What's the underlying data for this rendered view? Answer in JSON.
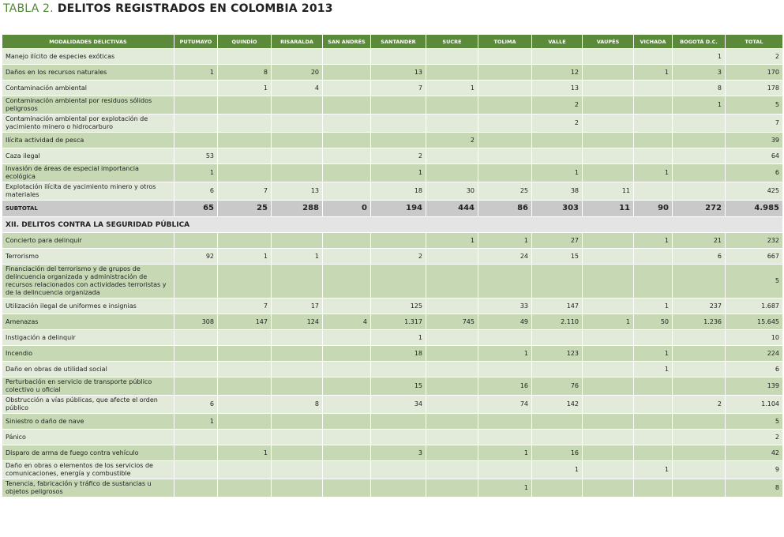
{
  "header": {
    "label": "TABLA 2.",
    "title": "DELITOS REGISTRADOS EN COLOMBIA 2013"
  },
  "table": {
    "columns": [
      "MODALIDADES DELICTIVAS",
      "PUTUMAYO",
      "QUINDÍO",
      "RISARALDA",
      "SAN ANDRÉS",
      "SANTANDER",
      "SUCRE",
      "TOLIMA",
      "VALLE",
      "VAUPÉS",
      "VICHADA",
      "BOGOTÁ D.C.",
      "TOTAL"
    ],
    "section_1": {
      "rows": [
        {
          "label": "Manejo ilícito de especies exóticas",
          "values": [
            null,
            null,
            null,
            null,
            null,
            null,
            null,
            null,
            null,
            null,
            "1",
            "2"
          ]
        },
        {
          "label": "Daños en los recursos naturales",
          "values": [
            "1",
            "8",
            "20",
            null,
            "13",
            null,
            null,
            "12",
            null,
            "1",
            "3",
            "170"
          ]
        },
        {
          "label": "Contaminación ambiental",
          "values": [
            null,
            "1",
            "4",
            null,
            "7",
            "1",
            null,
            "13",
            null,
            null,
            "8",
            "178"
          ]
        },
        {
          "label": "Contaminación ambiental por residuos sólidos peligrosos",
          "values": [
            null,
            null,
            null,
            null,
            null,
            null,
            null,
            "2",
            null,
            null,
            "1",
            "5"
          ]
        },
        {
          "label": "Contaminación ambiental por explotación de yacimiento minero o hidrocarburo",
          "values": [
            null,
            null,
            null,
            null,
            null,
            null,
            null,
            "2",
            null,
            null,
            null,
            "7"
          ]
        },
        {
          "label": "Ilícita actividad de pesca",
          "values": [
            null,
            null,
            null,
            null,
            null,
            "2",
            null,
            null,
            null,
            null,
            null,
            "39"
          ]
        },
        {
          "label": "Caza ilegal",
          "values": [
            "53",
            null,
            null,
            null,
            "2",
            null,
            null,
            null,
            null,
            null,
            null,
            "64"
          ]
        },
        {
          "label": "Invasión de áreas de especial importancia ecológica",
          "values": [
            "1",
            null,
            null,
            null,
            "1",
            null,
            null,
            "1",
            null,
            "1",
            null,
            "6"
          ]
        },
        {
          "label": "Explotación ilícita de yacimiento minero y otros materiales",
          "values": [
            "6",
            "7",
            "13",
            null,
            "18",
            "30",
            "25",
            "38",
            "11",
            null,
            null,
            "425"
          ]
        }
      ],
      "subtotal": {
        "label": "SUBTOTAL",
        "values": [
          "65",
          "25",
          "288",
          "0",
          "194",
          "444",
          "86",
          "303",
          "11",
          "90",
          "272",
          "4.985"
        ]
      }
    },
    "section_2": {
      "heading": "XII. DELITOS CONTRA LA SEGURIDAD PÚBLICA",
      "rows": [
        {
          "label": "Concierto para delinquir",
          "values": [
            null,
            null,
            null,
            null,
            null,
            "1",
            "1",
            "27",
            null,
            "1",
            "21",
            "232"
          ]
        },
        {
          "label": "Terrorismo",
          "values": [
            "92",
            "1",
            "1",
            null,
            "2",
            null,
            "24",
            "15",
            null,
            null,
            "6",
            "667"
          ]
        },
        {
          "label": "Financiación del terrorismo y de grupos de delincuencia organizada y administración de recursos relacionados con actividades terroristas y de la delincuencia organizada",
          "values": [
            null,
            null,
            null,
            null,
            null,
            null,
            null,
            null,
            null,
            null,
            null,
            "5"
          ]
        },
        {
          "label": "Utilización ilegal de uniformes e insignias",
          "values": [
            null,
            "7",
            "17",
            null,
            "125",
            null,
            "33",
            "147",
            null,
            "1",
            "237",
            "1.687"
          ]
        },
        {
          "label": "Amenazas",
          "values": [
            "308",
            "147",
            "124",
            "4",
            "1.317",
            "745",
            "49",
            "2.110",
            "1",
            "50",
            "1.236",
            "15.645"
          ]
        },
        {
          "label": "Instigación a delinquir",
          "values": [
            null,
            null,
            null,
            null,
            "1",
            null,
            null,
            null,
            null,
            null,
            null,
            "10"
          ]
        },
        {
          "label": "Incendio",
          "values": [
            null,
            null,
            null,
            null,
            "18",
            null,
            "1",
            "123",
            null,
            "1",
            null,
            "224"
          ]
        },
        {
          "label": "Daño en obras de utilidad social",
          "values": [
            null,
            null,
            null,
            null,
            null,
            null,
            null,
            null,
            null,
            "1",
            null,
            "6"
          ]
        },
        {
          "label": "Perturbación en servicio de transporte público colectivo u oficial",
          "values": [
            null,
            null,
            null,
            null,
            "15",
            null,
            "16",
            "76",
            null,
            null,
            null,
            "139"
          ]
        },
        {
          "label": "Obstrucción a vías públicas, que afecte el orden público",
          "values": [
            "6",
            null,
            "8",
            null,
            "34",
            null,
            "74",
            "142",
            null,
            null,
            "2",
            "1.104"
          ]
        },
        {
          "label": "Siniestro o daño de nave",
          "values": [
            "1",
            null,
            null,
            null,
            null,
            null,
            null,
            null,
            null,
            null,
            null,
            "5"
          ]
        },
        {
          "label": "Pánico",
          "values": [
            null,
            null,
            null,
            null,
            null,
            null,
            null,
            null,
            null,
            null,
            null,
            "2"
          ]
        },
        {
          "label": "Disparo de arma de fuego contra vehículo",
          "values": [
            null,
            "1",
            null,
            null,
            "3",
            null,
            "1",
            "16",
            null,
            null,
            null,
            "42"
          ]
        },
        {
          "label": "Daño en obras o elementos de los servicios de comunicaciones, energía y combustible",
          "values": [
            null,
            null,
            null,
            null,
            null,
            null,
            null,
            "1",
            null,
            "1",
            null,
            "9"
          ]
        },
        {
          "label": "Tenencia, fabricación y tráfico de sustancias u objetos peligrosos",
          "values": [
            null,
            null,
            null,
            null,
            null,
            null,
            "1",
            null,
            null,
            null,
            null,
            "8"
          ]
        }
      ]
    }
  }
}
